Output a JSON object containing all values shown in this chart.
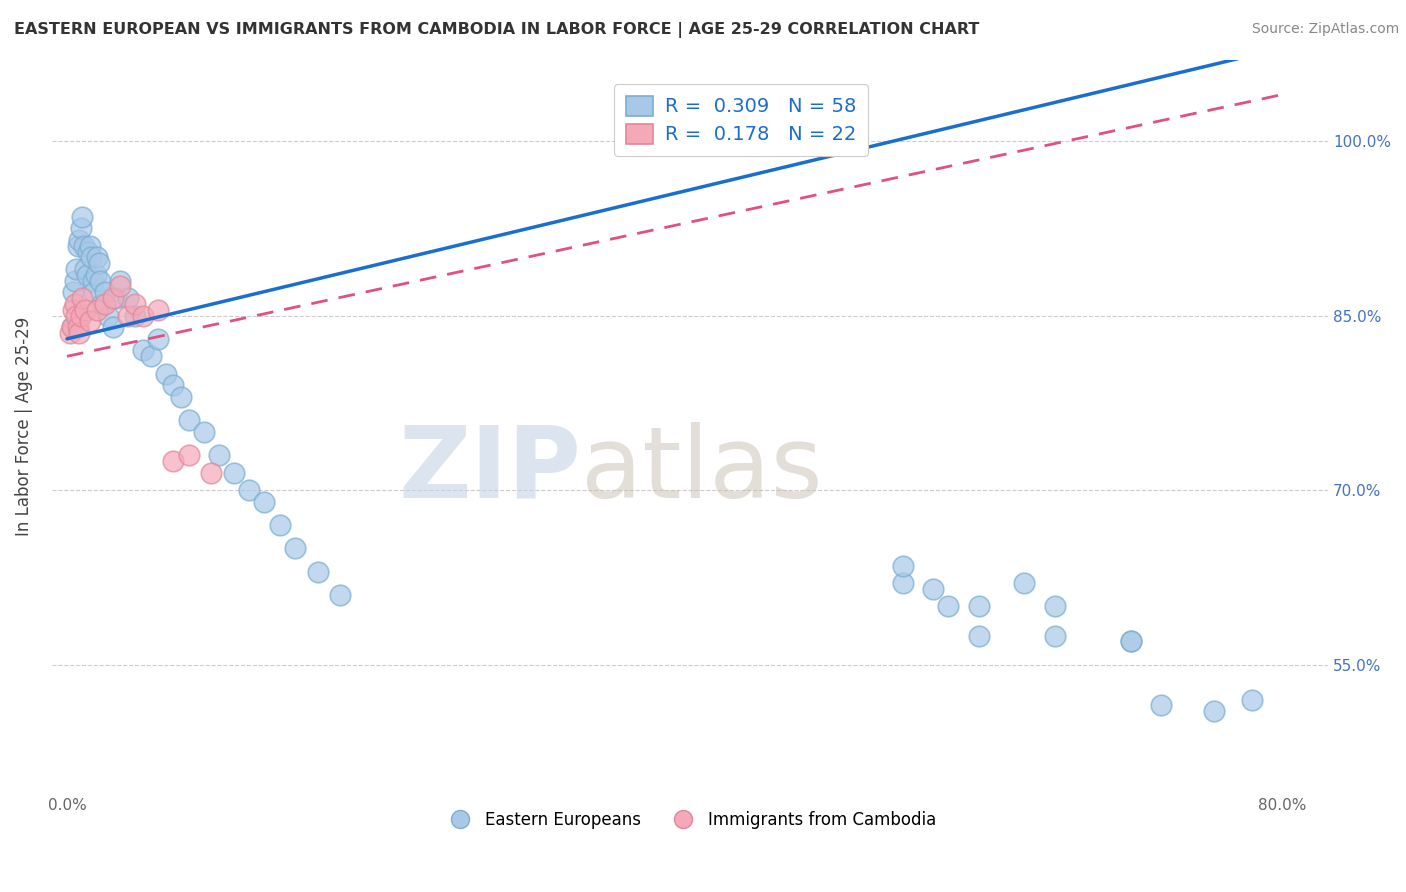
{
  "title": "EASTERN EUROPEAN VS IMMIGRANTS FROM CAMBODIA IN LABOR FORCE | AGE 25-29 CORRELATION CHART",
  "source": "Source: ZipAtlas.com",
  "ylabel": "In Labor Force | Age 25-29",
  "xlim": [
    0.0,
    80.0
  ],
  "ylim": [
    44.0,
    107.0
  ],
  "xticks": [
    0.0,
    20.0,
    40.0,
    60.0,
    80.0
  ],
  "xtick_labels": [
    "0.0%",
    "",
    "",
    "",
    "80.0%"
  ],
  "ytick_labels": [
    "55.0%",
    "70.0%",
    "85.0%",
    "100.0%"
  ],
  "yticks": [
    55.0,
    70.0,
    85.0,
    100.0
  ],
  "blue_color": "#a8c8e8",
  "pink_color": "#f4a8b8",
  "trend_blue": "#1a6fce",
  "trend_pink": "#e05080",
  "legend_R_blue": "0.309",
  "legend_N_blue": "58",
  "legend_R_pink": "0.178",
  "legend_N_pink": "22",
  "legend_label_blue": "Eastern Europeans",
  "legend_label_pink": "Immigrants from Cambodia",
  "blue_x": [
    0.3,
    0.4,
    0.5,
    0.6,
    0.7,
    0.8,
    0.9,
    1.0,
    1.1,
    1.2,
    1.3,
    1.4,
    1.5,
    1.6,
    1.7,
    1.8,
    1.9,
    2.0,
    2.1,
    2.2,
    2.3,
    2.5,
    2.7,
    3.0,
    3.2,
    3.5,
    4.0,
    4.5,
    5.0,
    5.5,
    6.0,
    6.5,
    7.0,
    7.5,
    8.0,
    9.0,
    10.0,
    11.0,
    12.0,
    13.0,
    14.0,
    15.0,
    16.5,
    18.0,
    55.0,
    60.0,
    65.0,
    70.0,
    72.0,
    75.5,
    78.0,
    55.0,
    57.0,
    58.0,
    60.0,
    63.0,
    65.0,
    70.0
  ],
  "blue_y": [
    84.0,
    87.0,
    88.0,
    89.0,
    91.0,
    91.5,
    92.5,
    93.5,
    91.0,
    89.0,
    88.5,
    90.5,
    91.0,
    90.0,
    88.0,
    87.0,
    88.5,
    90.0,
    89.5,
    88.0,
    86.0,
    87.0,
    85.0,
    84.0,
    86.5,
    88.0,
    86.5,
    85.0,
    82.0,
    81.5,
    83.0,
    80.0,
    79.0,
    78.0,
    76.0,
    75.0,
    73.0,
    71.5,
    70.0,
    69.0,
    67.0,
    65.0,
    63.0,
    61.0,
    62.0,
    60.0,
    57.5,
    57.0,
    51.5,
    51.0,
    52.0,
    63.5,
    61.5,
    60.0,
    57.5,
    62.0,
    60.0,
    57.0
  ],
  "pink_x": [
    0.2,
    0.3,
    0.4,
    0.5,
    0.6,
    0.7,
    0.8,
    0.9,
    1.0,
    1.2,
    1.5,
    2.0,
    2.5,
    3.0,
    3.5,
    4.0,
    4.5,
    5.0,
    6.0,
    7.0,
    8.0,
    9.5
  ],
  "pink_y": [
    83.5,
    84.0,
    85.5,
    86.0,
    85.0,
    84.0,
    83.5,
    85.0,
    86.5,
    85.5,
    84.5,
    85.5,
    86.0,
    86.5,
    87.5,
    85.0,
    86.0,
    85.0,
    85.5,
    72.5,
    73.0,
    71.5
  ],
  "trend_blue_x0": 0.0,
  "trend_blue_y0": 83.0,
  "trend_blue_x1": 80.0,
  "trend_blue_y1": 108.0,
  "trend_pink_x0": 0.0,
  "trend_pink_y0": 81.5,
  "trend_pink_x1": 80.0,
  "trend_pink_y1": 104.0
}
